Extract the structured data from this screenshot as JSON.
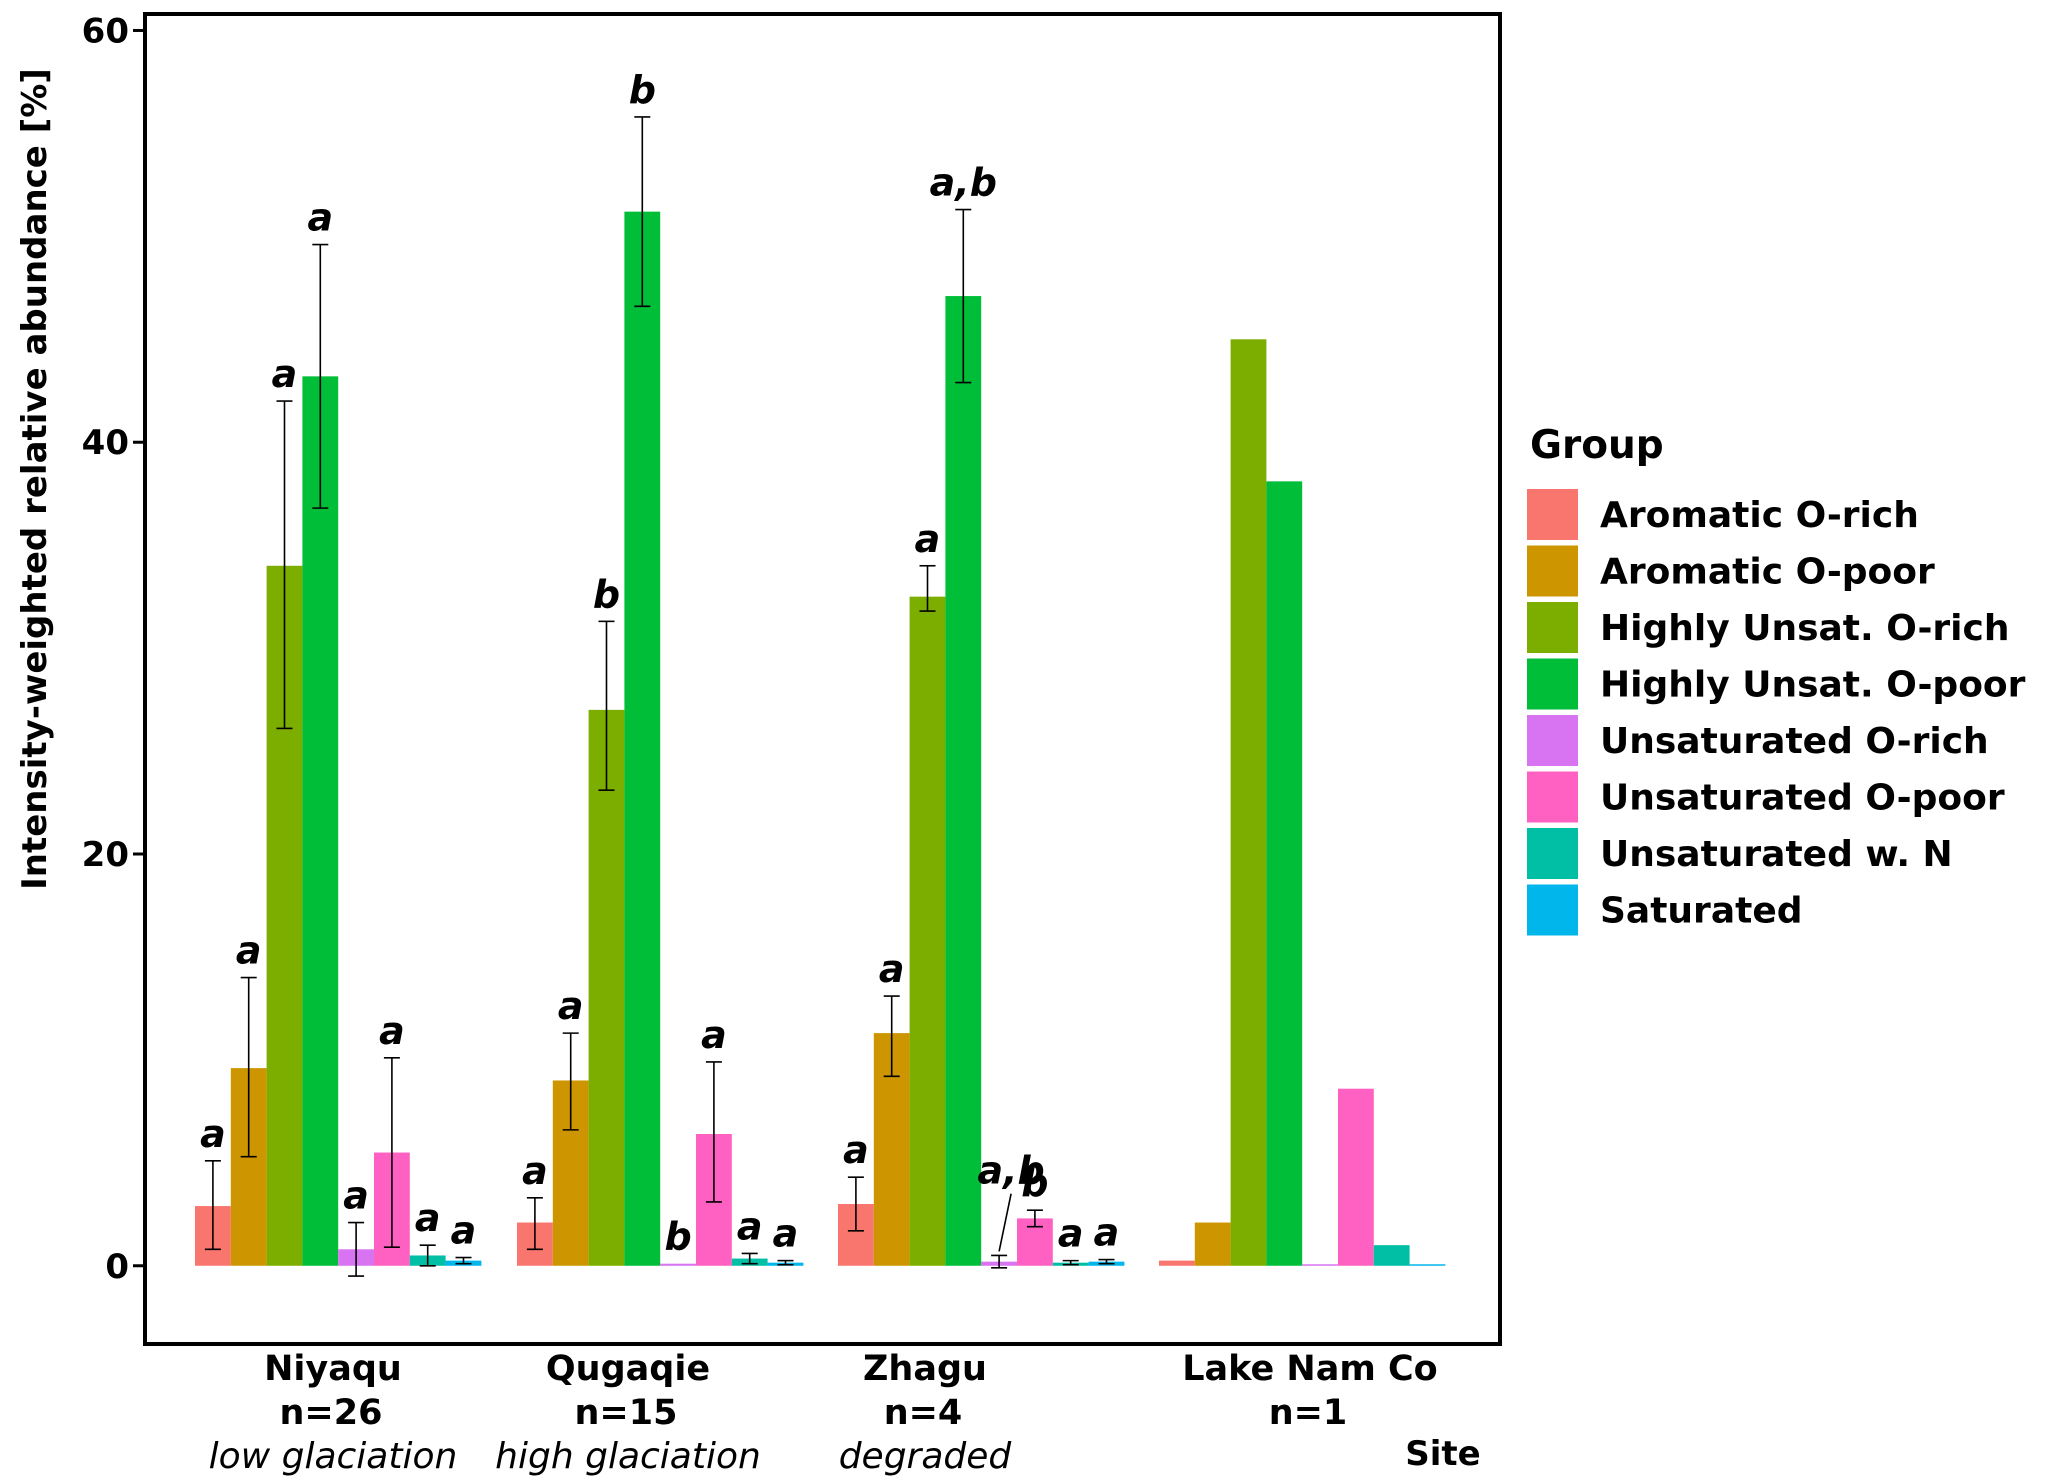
{
  "chart_data": {
    "type": "bar",
    "ylabel": "Intensity-weighted relative abundance [%]",
    "xlabel": "Site",
    "ylim": [
      -3.8,
      60.8
    ],
    "yticks": [
      0,
      20,
      40,
      60
    ],
    "grid": false,
    "legend": {
      "title": "Group",
      "placement": "right"
    },
    "sites": [
      {
        "name": "Niyaqu",
        "n": "n=26",
        "note": "low glaciation"
      },
      {
        "name": "Qugaqie",
        "n": "n=15",
        "note": "high glaciation"
      },
      {
        "name": "Zhagu",
        "n": "n=4",
        "note": "degraded"
      },
      {
        "name": "Lake Nam Co",
        "n": "n=1",
        "note": ""
      }
    ],
    "series": [
      {
        "name": "Aromatic O-rich",
        "color": "#F8766D",
        "values": [
          2.9,
          2.1,
          3.0,
          0.25
        ],
        "errors": [
          [
            0.8,
            5.1
          ],
          [
            0.8,
            3.3
          ],
          [
            1.7,
            4.3
          ],
          null
        ],
        "letters": [
          "a",
          "a",
          "a",
          ""
        ]
      },
      {
        "name": "Aromatic O-poor",
        "color": "#CD9600",
        "values": [
          9.6,
          9.0,
          11.3,
          2.1
        ],
        "errors": [
          [
            5.3,
            14.0
          ],
          [
            6.6,
            11.3
          ],
          [
            9.2,
            13.1
          ],
          null
        ],
        "letters": [
          "a",
          "a",
          "a",
          ""
        ]
      },
      {
        "name": "Highly Unsat. O-rich",
        "color": "#7CAE00",
        "values": [
          34.0,
          27.0,
          32.5,
          45.0
        ],
        "errors": [
          [
            26.1,
            42.0
          ],
          [
            23.1,
            31.3
          ],
          [
            31.8,
            34.0
          ],
          null
        ],
        "letters": [
          "a",
          "b",
          "a",
          ""
        ]
      },
      {
        "name": "Highly Unsat. O-poor",
        "color": "#00BE38",
        "values": [
          43.2,
          51.2,
          47.1,
          38.1
        ],
        "errors": [
          [
            36.8,
            49.6
          ],
          [
            46.6,
            55.8
          ],
          [
            42.9,
            51.3
          ],
          null
        ],
        "letters": [
          "a",
          "b",
          "a,b",
          ""
        ]
      },
      {
        "name": "Unsaturated O-rich",
        "color": "#D873F2",
        "values": [
          0.8,
          0.1,
          0.2,
          0.0
        ],
        "errors": [
          [
            -0.5,
            2.1
          ],
          null,
          [
            -0.1,
            0.5
          ],
          null
        ],
        "letters": [
          "a",
          "b",
          "a,b",
          ""
        ]
      },
      {
        "name": "Unsaturated O-poor",
        "color": "#FF61C3",
        "values": [
          5.5,
          6.4,
          2.3,
          8.6
        ],
        "errors": [
          [
            0.9,
            10.1
          ],
          [
            3.1,
            9.9
          ],
          [
            1.9,
            2.7
          ],
          null
        ],
        "letters": [
          "a",
          "a",
          "b",
          ""
        ]
      },
      {
        "name": "Unsaturated w. N",
        "color": "#00BFA5",
        "values": [
          0.5,
          0.35,
          0.15,
          1.0
        ],
        "errors": [
          [
            0.0,
            1.0
          ],
          [
            0.1,
            0.6
          ],
          [
            0.05,
            0.25
          ],
          null
        ],
        "letters": [
          "a",
          "a",
          "a",
          ""
        ]
      },
      {
        "name": "Saturated",
        "color": "#00B6EB",
        "values": [
          0.25,
          0.15,
          0.2,
          0.05
        ],
        "errors": [
          [
            0.1,
            0.4
          ],
          [
            0.05,
            0.25
          ],
          [
            0.1,
            0.3
          ],
          null
        ],
        "letters": [
          "a",
          "a",
          "a",
          ""
        ]
      }
    ]
  }
}
